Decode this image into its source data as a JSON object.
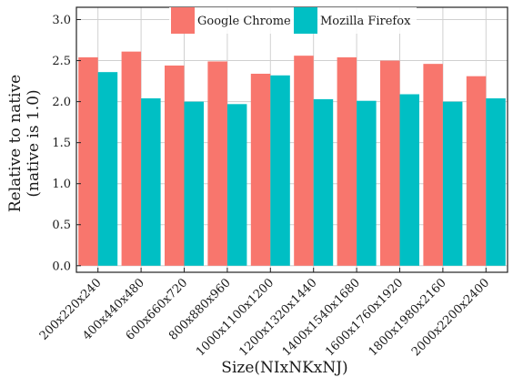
{
  "chart_data": {
    "type": "bar",
    "categories": [
      "200x220x240",
      "400x440x480",
      "600x660x720",
      "800x880x960",
      "1000x1100x1200",
      "1200x1320x1440",
      "1400x1540x1680",
      "1600x1760x1920",
      "1800x1980x2160",
      "2000x2200x2400"
    ],
    "series": [
      {
        "name": "Google Chrome",
        "color": "#f8766d",
        "values": [
          2.54,
          2.61,
          2.44,
          2.49,
          2.34,
          2.56,
          2.54,
          2.5,
          2.46,
          2.31
        ]
      },
      {
        "name": "Mozilla Firefox",
        "color": "#00bfc4",
        "values": [
          2.36,
          2.04,
          2.0,
          1.97,
          2.32,
          2.03,
          2.01,
          2.09,
          2.0,
          2.04
        ]
      }
    ],
    "xlabel": "Size(NIxNKxNJ)",
    "ylabel_lines": [
      "Relative to native",
      "(native is 1.0)"
    ],
    "ylim": [
      -0.08,
      3.15
    ],
    "yticks": [
      "0.0",
      "0.5",
      "1.0",
      "1.5",
      "2.0",
      "2.5",
      "3.0"
    ],
    "grid": true,
    "legend_position": "top-center"
  }
}
